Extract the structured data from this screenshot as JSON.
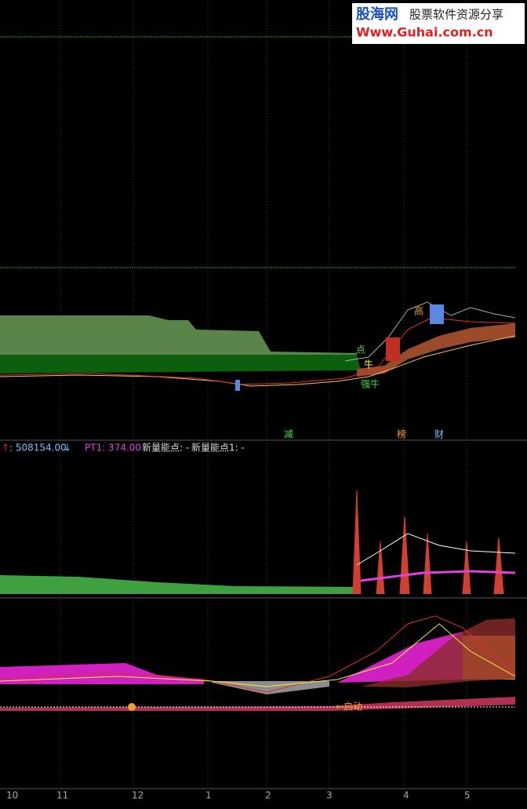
{
  "watermark": {
    "brand": "股海网",
    "slogan": "股票软件资源分享",
    "url": "Www.Guhai.com.cn"
  },
  "price_labels": {
    "high": "高",
    "point": "点",
    "bull": "牛",
    "strong_bull": "强牛"
  },
  "signals": {
    "reduce": "减",
    "rank": "榜",
    "finance": "财"
  },
  "indicator": {
    "up": "↑",
    "value": ": 508154.00",
    "down": "↓",
    "pt1": "PT1: 374.00",
    "new_point": "新量能点: -",
    "new_point1": "新量能点1: -"
  },
  "macd_label": "←启动",
  "x_axis": [
    "10",
    "11",
    "12",
    "1",
    "2",
    "3",
    "4",
    "5"
  ]
}
